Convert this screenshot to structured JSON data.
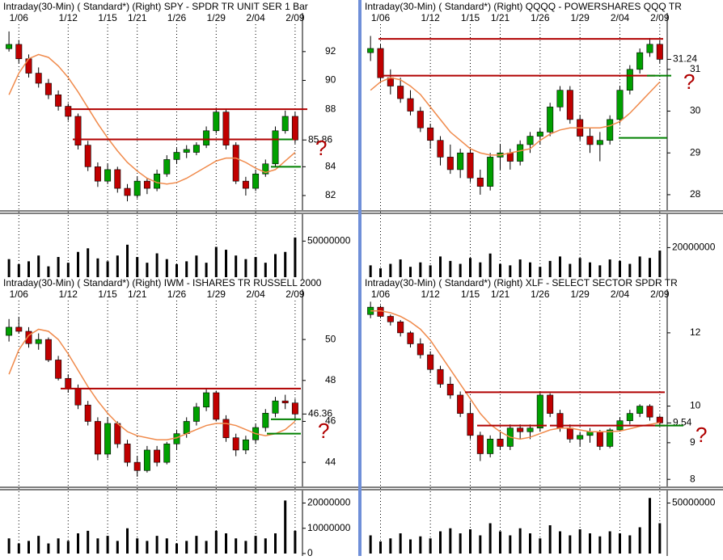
{
  "chart_data": [
    {
      "type": "candlestick",
      "title": "Intraday(30-Min) ( Standard*)  (Right)  SPY - SPDR TR UNIT SER 1  Bar",
      "categories": [
        null,
        "1/06",
        null,
        null,
        null,
        null,
        "1/12",
        null,
        null,
        null,
        "1/15",
        null,
        null,
        "1/21",
        null,
        null,
        null,
        "1/26",
        null,
        null,
        null,
        "1/29",
        null,
        null,
        null,
        "2/04",
        null,
        null,
        null,
        "2/09"
      ],
      "candles": [
        [
          92.2,
          93.4,
          92,
          92.5
        ],
        [
          92.5,
          92.8,
          91.2,
          91.5
        ],
        [
          91.5,
          91.8,
          90.2,
          90.5
        ],
        [
          90.5,
          90.9,
          89.5,
          89.8
        ],
        [
          89.8,
          90.1,
          88.7,
          89
        ],
        [
          89,
          89.3,
          87.9,
          88.2
        ],
        [
          88.2,
          88.4,
          87.2,
          87.5
        ],
        [
          87.5,
          87.7,
          85.2,
          85.5
        ],
        [
          85.5,
          85.8,
          83.7,
          84
        ],
        [
          84,
          84.3,
          82.6,
          83
        ],
        [
          83,
          84.2,
          82.8,
          83.8
        ],
        [
          83.8,
          84,
          82.2,
          82.5
        ],
        [
          82.5,
          82.8,
          81.6,
          82
        ],
        [
          82,
          83.3,
          81.8,
          83
        ],
        [
          83,
          83.2,
          82.1,
          82.5
        ],
        [
          82.5,
          83.8,
          82.3,
          83.5
        ],
        [
          83.5,
          84.8,
          83.3,
          84.5
        ],
        [
          84.5,
          85.3,
          84.2,
          85
        ],
        [
          85,
          85.5,
          84.6,
          85.2
        ],
        [
          85,
          85.7,
          84.8,
          85.5
        ],
        [
          85.5,
          86.8,
          85.3,
          86.5
        ],
        [
          86.5,
          88.1,
          86.3,
          87.8
        ],
        [
          87.8,
          88,
          85.2,
          85.5
        ],
        [
          85.5,
          85.7,
          82.8,
          83
        ],
        [
          83,
          83.3,
          82,
          82.5
        ],
        [
          82.5,
          83.8,
          82.3,
          83.5
        ],
        [
          83.5,
          84.5,
          83.3,
          84.2
        ],
        [
          84.2,
          86.8,
          84,
          86.5
        ],
        [
          86.5,
          87.9,
          86.3,
          87.5
        ],
        [
          87.5,
          87.8,
          85.6,
          85.86
        ]
      ],
      "moving_average": [
        89,
        90.5,
        91.5,
        91.8,
        91.6,
        91,
        90.2,
        89.2,
        88.1,
        87,
        86,
        85.1,
        84.3,
        83.7,
        83.2,
        82.9,
        82.8,
        82.9,
        83.2,
        83.6,
        84,
        84.4,
        84.6,
        84.6,
        84.3,
        83.9,
        83.6,
        83.8,
        84.4,
        85
      ],
      "volume": [
        25000000,
        18000000,
        22000000,
        30000000,
        15000000,
        28000000,
        20000000,
        35000000,
        40000000,
        26000000,
        22000000,
        30000000,
        45000000,
        28000000,
        20000000,
        33000000,
        25000000,
        18000000,
        22000000,
        30000000,
        20000000,
        42000000,
        38000000,
        30000000,
        25000000,
        28000000,
        20000000,
        32000000,
        35000000,
        55000000
      ],
      "ylim": [
        81.1,
        93.9
      ],
      "yticks": [
        82,
        84,
        88,
        90,
        92
      ],
      "last_price": 85.86,
      "vylim": [
        0,
        84000000
      ],
      "vyticks": [
        50000000
      ],
      "levels": [
        {
          "value": 88,
          "color": "#b00000"
        },
        {
          "value": 85.9,
          "color": "#b00000"
        },
        {
          "value": 85.9,
          "color": "#008000"
        },
        {
          "value": 84,
          "color": "#008000"
        }
      ],
      "annotation": "?",
      "up_color": "#00a000",
      "down_color": "#c00000",
      "ma_color": "#f08a4b"
    },
    {
      "type": "candlestick",
      "title": "Intraday(30-Min) ( Standard*)  (Right)  QQQQ - POWERSHARES QQQ TR",
      "categories": [
        null,
        "1/06",
        null,
        null,
        null,
        null,
        "1/12",
        null,
        null,
        null,
        "1/15",
        null,
        null,
        "1/21",
        null,
        null,
        null,
        "1/26",
        null,
        null,
        null,
        "1/29",
        null,
        null,
        null,
        "2/04",
        null,
        null,
        null,
        "2/09"
      ],
      "candles": [
        [
          31.4,
          31.8,
          31.2,
          31.5
        ],
        [
          31.5,
          31.6,
          30.7,
          30.8
        ],
        [
          30.8,
          31,
          30.4,
          30.6
        ],
        [
          30.6,
          30.8,
          30.2,
          30.3
        ],
        [
          30.3,
          30.5,
          29.9,
          30
        ],
        [
          30,
          30.1,
          29.5,
          29.6
        ],
        [
          29.6,
          29.7,
          29.1,
          29.3
        ],
        [
          29.3,
          29.4,
          28.7,
          28.9
        ],
        [
          28.9,
          29.2,
          28.5,
          28.6
        ],
        [
          28.6,
          29.1,
          28.4,
          29
        ],
        [
          29,
          29.1,
          28.3,
          28.4
        ],
        [
          28.4,
          28.6,
          28,
          28.2
        ],
        [
          28.2,
          29,
          28.1,
          28.9
        ],
        [
          28.9,
          29.2,
          28.6,
          29
        ],
        [
          29,
          29.1,
          28.6,
          28.8
        ],
        [
          28.8,
          29.3,
          28.7,
          29.2
        ],
        [
          29.2,
          29.5,
          29,
          29.4
        ],
        [
          29.4,
          29.6,
          29.2,
          29.5
        ],
        [
          29.5,
          30.2,
          29.4,
          30.1
        ],
        [
          30.1,
          30.6,
          30,
          30.5
        ],
        [
          30.5,
          30.6,
          29.7,
          29.8
        ],
        [
          29.8,
          29.9,
          29.3,
          29.4
        ],
        [
          29.4,
          29.6,
          29,
          29.2
        ],
        [
          29.2,
          29.5,
          28.8,
          29.3
        ],
        [
          29.3,
          29.9,
          29.2,
          29.8
        ],
        [
          29.8,
          30.6,
          29.7,
          30.5
        ],
        [
          30.5,
          31.1,
          30.4,
          31
        ],
        [
          31,
          31.5,
          30.9,
          31.4
        ],
        [
          31.4,
          31.75,
          31.3,
          31.6
        ],
        [
          31.6,
          31.7,
          31.15,
          31.24
        ]
      ],
      "moving_average": [
        30.5,
        30.7,
        30.8,
        30.75,
        30.6,
        30.4,
        30.1,
        29.8,
        29.5,
        29.3,
        29.1,
        29,
        28.95,
        28.95,
        29,
        29.05,
        29.1,
        29.3,
        29.45,
        29.55,
        29.6,
        29.6,
        29.6,
        29.6,
        29.65,
        29.75,
        29.95,
        30.2,
        30.45,
        30.7
      ],
      "volume": [
        8000000,
        6000000,
        9000000,
        12000000,
        7000000,
        10000000,
        8000000,
        14000000,
        11000000,
        9000000,
        13000000,
        10000000,
        16000000,
        9000000,
        8000000,
        12000000,
        10000000,
        7000000,
        11000000,
        14000000,
        9000000,
        13000000,
        10000000,
        8000000,
        12000000,
        11000000,
        9000000,
        14000000,
        13000000,
        18000000
      ],
      "ylim": [
        27.67,
        32.08
      ],
      "yticks": [
        28,
        29,
        30,
        31
      ],
      "last_price": 31.24,
      "vylim": [
        0,
        41000000
      ],
      "vyticks": [
        20000000
      ],
      "levels": [
        {
          "value": 31.73,
          "color": "#b00000"
        },
        {
          "value": 30.85,
          "color": "#b00000"
        },
        {
          "value": 30.85,
          "color": "#008000"
        },
        {
          "value": 29.36,
          "color": "#008000"
        }
      ],
      "annotation": "?",
      "up_color": "#00a000",
      "down_color": "#c00000",
      "ma_color": "#f08a4b"
    },
    {
      "type": "candlestick",
      "title": "Intraday(30-Min) ( Standard*)  (Right)  IWM - ISHARES TR RUSSELL 2000",
      "categories": [
        null,
        "1/06",
        null,
        null,
        null,
        null,
        "1/12",
        null,
        null,
        null,
        "1/15",
        null,
        null,
        "1/21",
        null,
        null,
        null,
        "1/26",
        null,
        null,
        null,
        "1/29",
        null,
        null,
        null,
        "2/04",
        null,
        null,
        null,
        "2/09"
      ],
      "candles": [
        [
          50.2,
          51,
          49.9,
          50.6
        ],
        [
          50.6,
          51.1,
          50.3,
          50.4
        ],
        [
          50.4,
          50.6,
          49.6,
          49.8
        ],
        [
          49.8,
          50.3,
          49.5,
          50
        ],
        [
          50,
          50.1,
          48.9,
          49
        ],
        [
          49,
          49.2,
          48,
          48.1
        ],
        [
          48.1,
          48.3,
          47.4,
          47.6
        ],
        [
          47.6,
          47.8,
          46.6,
          46.8
        ],
        [
          46.8,
          47,
          45.8,
          46
        ],
        [
          46,
          46.2,
          44.1,
          44.4
        ],
        [
          44.4,
          46.2,
          44.2,
          45.9
        ],
        [
          45.9,
          46,
          44.7,
          44.9
        ],
        [
          44.9,
          45.1,
          43.8,
          44
        ],
        [
          44,
          44.3,
          43.3,
          43.6
        ],
        [
          43.6,
          44.8,
          43.5,
          44.6
        ],
        [
          44.6,
          44.8,
          43.8,
          44
        ],
        [
          44,
          45,
          43.9,
          44.9
        ],
        [
          44.9,
          45.6,
          44.6,
          45.4
        ],
        [
          45.4,
          46.2,
          45.2,
          46
        ],
        [
          46,
          46.9,
          45.8,
          46.7
        ],
        [
          46.7,
          47.6,
          46.5,
          47.4
        ],
        [
          47.4,
          47.5,
          46,
          46.1
        ],
        [
          46.1,
          46.3,
          45,
          45.2
        ],
        [
          45.2,
          45.4,
          44.3,
          44.6
        ],
        [
          44.6,
          45.3,
          44.4,
          45.1
        ],
        [
          45.1,
          45.9,
          44.9,
          45.7
        ],
        [
          45.7,
          46.6,
          45.5,
          46.4
        ],
        [
          46.4,
          47.2,
          46.2,
          47
        ],
        [
          47,
          47.3,
          46.6,
          46.9
        ],
        [
          46.9,
          47.1,
          46.1,
          46.36
        ]
      ],
      "moving_average": [
        48.3,
        49.5,
        50.2,
        50.5,
        50.4,
        50,
        49.3,
        48.5,
        47.7,
        47,
        46.4,
        45.9,
        45.5,
        45.3,
        45.2,
        45.1,
        45.1,
        45.2,
        45.4,
        45.6,
        45.8,
        45.9,
        45.9,
        45.8,
        45.6,
        45.4,
        45.3,
        45.4,
        45.6,
        46
      ],
      "volume": [
        6000000,
        4000000,
        5000000,
        7000000,
        4000000,
        6000000,
        5000000,
        8000000,
        9000000,
        6000000,
        7000000,
        5000000,
        10000000,
        6000000,
        5000000,
        7000000,
        6000000,
        4000000,
        5000000,
        7000000,
        5000000,
        9000000,
        8000000,
        6000000,
        5000000,
        7000000,
        6000000,
        8000000,
        21000000,
        9000000
      ],
      "ylim": [
        42.9,
        51.9
      ],
      "yticks": [
        44,
        46,
        48,
        50
      ],
      "last_price": 46.36,
      "vylim": [
        0,
        24000000
      ],
      "vyticks": [
        0,
        10000000,
        20000000
      ],
      "levels": [
        {
          "value": 47.6,
          "color": "#b00000"
        },
        {
          "value": 46.1,
          "color": "#008000"
        },
        {
          "value": 45.4,
          "color": "#008000"
        }
      ],
      "annotation": "?",
      "up_color": "#00a000",
      "down_color": "#c00000",
      "ma_color": "#f08a4b"
    },
    {
      "type": "candlestick",
      "title": "Intraday(30-Min) ( Standard*)  (Right)  XLF - SELECT SECTOR SPDR TR",
      "categories": [
        null,
        "1/06",
        null,
        null,
        null,
        null,
        "1/12",
        null,
        null,
        null,
        "1/15",
        null,
        null,
        "1/21",
        null,
        null,
        null,
        "1/26",
        null,
        null,
        null,
        "1/29",
        null,
        null,
        null,
        "2/04",
        null,
        null,
        null,
        "2/09"
      ],
      "candles": [
        [
          12.5,
          12.85,
          12.4,
          12.7
        ],
        [
          12.7,
          12.75,
          12.4,
          12.45
        ],
        [
          12.45,
          12.5,
          12.2,
          12.3
        ],
        [
          12.3,
          12.35,
          11.9,
          12
        ],
        [
          12,
          12.05,
          11.6,
          11.7
        ],
        [
          11.7,
          11.85,
          11.3,
          11.4
        ],
        [
          11.4,
          11.5,
          10.9,
          11
        ],
        [
          11,
          11.1,
          10.5,
          10.6
        ],
        [
          10.6,
          10.8,
          10.2,
          10.3
        ],
        [
          10.3,
          10.4,
          9.7,
          9.8
        ],
        [
          9.8,
          10.1,
          9.1,
          9.2
        ],
        [
          9.2,
          9.3,
          8.5,
          8.7
        ],
        [
          8.7,
          9.2,
          8.6,
          9.1
        ],
        [
          9.1,
          9.3,
          8.8,
          8.9
        ],
        [
          8.9,
          9.5,
          8.8,
          9.4
        ],
        [
          9.4,
          9.5,
          9.1,
          9.3
        ],
        [
          9.3,
          9.5,
          9.1,
          9.4
        ],
        [
          9.4,
          10.4,
          9.3,
          10.3
        ],
        [
          10.3,
          10.35,
          9.7,
          9.8
        ],
        [
          9.8,
          9.9,
          9.3,
          9.4
        ],
        [
          9.4,
          9.5,
          9,
          9.1
        ],
        [
          9.1,
          9.3,
          8.9,
          9.2
        ],
        [
          9.2,
          9.4,
          9,
          9.3
        ],
        [
          9.3,
          9.35,
          8.8,
          8.9
        ],
        [
          8.9,
          9.4,
          8.85,
          9.35
        ],
        [
          9.35,
          9.7,
          9.3,
          9.6
        ],
        [
          9.6,
          9.9,
          9.5,
          9.8
        ],
        [
          9.8,
          10.05,
          9.7,
          10
        ],
        [
          10,
          10.05,
          9.6,
          9.7
        ],
        [
          9.7,
          9.75,
          9.45,
          9.54
        ]
      ],
      "moving_average": [
        12.6,
        12.6,
        12.55,
        12.45,
        12.3,
        12.1,
        11.8,
        11.4,
        11,
        10.6,
        10.2,
        9.8,
        9.5,
        9.3,
        9.15,
        9.1,
        9.15,
        9.25,
        9.35,
        9.4,
        9.4,
        9.35,
        9.3,
        9.3,
        9.3,
        9.32,
        9.38,
        9.45,
        9.5,
        9.55
      ],
      "volume": [
        18000000,
        12000000,
        15000000,
        20000000,
        14000000,
        17000000,
        15000000,
        22000000,
        25000000,
        20000000,
        24000000,
        18000000,
        30000000,
        22000000,
        18000000,
        25000000,
        20000000,
        15000000,
        28000000,
        22000000,
        18000000,
        24000000,
        20000000,
        17000000,
        22000000,
        20000000,
        18000000,
        26000000,
        55000000,
        30000000
      ],
      "ylim": [
        7.85,
        12.88
      ],
      "yticks": [
        8,
        9,
        10,
        12
      ],
      "last_price": 9.54,
      "vylim": [
        0,
        60000000
      ],
      "vyticks": [
        50000000
      ],
      "levels": [
        {
          "value": 10.38,
          "color": "#b00000"
        },
        {
          "value": 9.47,
          "color": "#b00000"
        },
        {
          "value": 9.47,
          "color": "#b00000"
        },
        {
          "value": 9.47,
          "color": "#008000"
        }
      ],
      "annotation": "?",
      "up_color": "#00a000",
      "down_color": "#c00000",
      "ma_color": "#f08a4b"
    }
  ]
}
